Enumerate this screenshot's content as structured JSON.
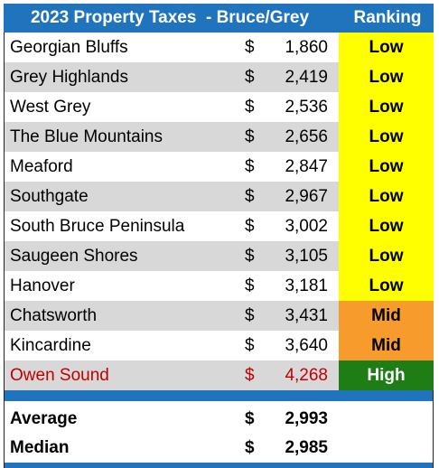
{
  "header": {
    "title": "2023 Property Taxes  - Bruce/Grey",
    "ranking": "Ranking"
  },
  "currency_symbol": "$",
  "rows": [
    {
      "name": "Georgian Bluffs",
      "amount": "1,860",
      "rank": "Low"
    },
    {
      "name": "Grey Highlands",
      "amount": "2,419",
      "rank": "Low"
    },
    {
      "name": "West Grey",
      "amount": "2,536",
      "rank": "Low"
    },
    {
      "name": "The Blue Mountains",
      "amount": "2,656",
      "rank": "Low"
    },
    {
      "name": "Meaford",
      "amount": "2,847",
      "rank": "Low"
    },
    {
      "name": "Southgate",
      "amount": "2,967",
      "rank": "Low"
    },
    {
      "name": "South Bruce Peninsula",
      "amount": "3,002",
      "rank": "Low"
    },
    {
      "name": "Saugeen Shores",
      "amount": "3,105",
      "rank": "Low"
    },
    {
      "name": "Hanover",
      "amount": "3,181",
      "rank": "Low"
    },
    {
      "name": "Chatsworth",
      "amount": "3,431",
      "rank": "Mid"
    },
    {
      "name": "Kincardine",
      "amount": "3,640",
      "rank": "Mid"
    },
    {
      "name": "Owen Sound",
      "amount": "4,268",
      "rank": "High"
    }
  ],
  "summary": {
    "average": {
      "label": "Average",
      "amount": "2,993"
    },
    "median": {
      "label": "Median",
      "amount": "2,985"
    }
  },
  "colors": {
    "header": "#1f74bd",
    "low": "#ffff00",
    "mid": "#f79c2c",
    "high": "#1e7d14",
    "highlight_text": "#c00000",
    "shaded_row": "#d8d8d8"
  }
}
